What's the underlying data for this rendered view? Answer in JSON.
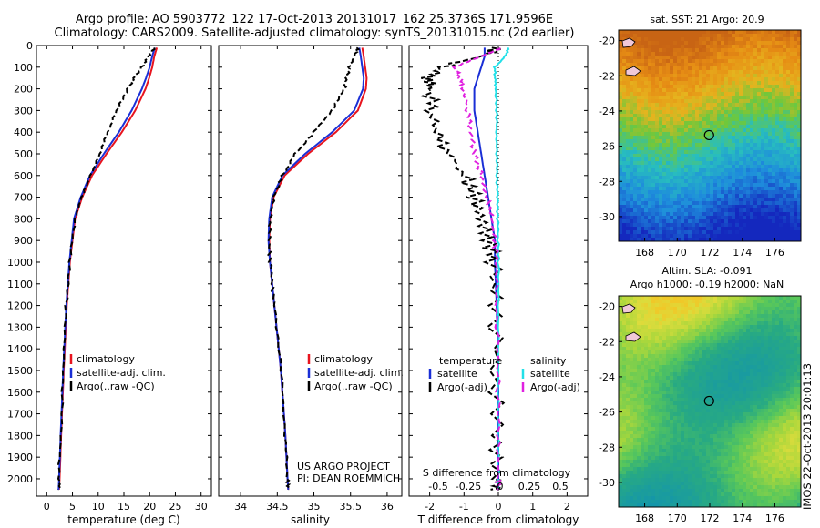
{
  "header": {
    "line1": "Argo profile: AO 5903772_122 17-Oct-2013 20131017_162 25.3736S 171.9596E",
    "line2": "Climatology: CARS2009. Satellite-adjusted climatology: synTS_20131015.nc (2d earlier)"
  },
  "colors": {
    "climatology": "#e8141e",
    "satellite": "#1a2fd6",
    "argo": "#000000",
    "sat_salinity": "#22e0e8",
    "argo_salinity": "#e020e0"
  },
  "chart_data": [
    {
      "type": "line",
      "xlabel": "temperature (deg C)",
      "xlim": [
        -2,
        32
      ],
      "ylim": [
        0,
        2080
      ],
      "xticks": [
        "0",
        "5",
        "10",
        "15",
        "20",
        "25",
        "30"
      ],
      "yticks": [
        "0",
        "100",
        "200",
        "300",
        "400",
        "500",
        "600",
        "700",
        "800",
        "900",
        "1000",
        "1100",
        "1200",
        "1300",
        "1400",
        "1500",
        "1600",
        "1700",
        "1800",
        "1900",
        "2000"
      ],
      "legend": [
        "climatology",
        "satellite-adj. clim.",
        "Argo(..raw -QC)"
      ],
      "depth": [
        10,
        50,
        100,
        150,
        200,
        300,
        400,
        500,
        600,
        700,
        800,
        1000,
        1200,
        1500,
        1800,
        2000,
        2050
      ],
      "series": [
        {
          "name": "climatology",
          "values": [
            21.4,
            20.9,
            20.5,
            19.9,
            19.2,
            17.2,
            14.6,
            11.6,
            8.8,
            6.9,
            5.5,
            4.5,
            3.9,
            3.3,
            2.8,
            2.5,
            2.4
          ]
        },
        {
          "name": "satellite-adj. clim.",
          "values": [
            21.0,
            20.5,
            20.0,
            19.3,
            18.5,
            16.5,
            14.0,
            11.1,
            8.4,
            6.6,
            5.3,
            4.4,
            3.8,
            3.2,
            2.7,
            2.4,
            2.3
          ]
        },
        {
          "name": "Argo(..raw -QC)",
          "values": [
            20.9,
            19.8,
            18.5,
            17.0,
            15.8,
            13.6,
            11.9,
            10.3,
            8.6,
            6.8,
            5.5,
            4.5,
            3.8,
            3.2,
            2.7,
            2.4,
            2.4
          ]
        }
      ]
    },
    {
      "type": "line",
      "xlabel": "salinity",
      "xlim": [
        33.7,
        36.2
      ],
      "ylim": [
        0,
        2080
      ],
      "xticks": [
        "34",
        "34.5",
        "35",
        "35.5",
        "36"
      ],
      "legend": [
        "climatology",
        "satellite-adj. clim.",
        "Argo(..raw -QC)"
      ],
      "annotation": [
        "US ARGO PROJECT",
        "PI: DEAN ROEMMICH"
      ],
      "depth": [
        10,
        50,
        100,
        150,
        200,
        300,
        400,
        500,
        600,
        700,
        800,
        900,
        1000,
        1100,
        1200,
        1500,
        1800,
        2000,
        2050
      ],
      "series": [
        {
          "name": "climatology",
          "values": [
            35.66,
            35.68,
            35.7,
            35.72,
            35.71,
            35.6,
            35.3,
            34.92,
            34.6,
            34.45,
            34.4,
            34.39,
            34.4,
            34.43,
            34.46,
            34.55,
            34.61,
            34.64,
            34.65
          ]
        },
        {
          "name": "satellite-adj. clim.",
          "values": [
            35.62,
            35.64,
            35.66,
            35.68,
            35.67,
            35.55,
            35.25,
            34.88,
            34.57,
            34.43,
            34.39,
            34.38,
            34.4,
            34.43,
            34.46,
            34.55,
            34.61,
            34.64,
            34.65
          ]
        },
        {
          "name": "Argo(..raw -QC)",
          "values": [
            35.6,
            35.55,
            35.48,
            35.45,
            35.42,
            35.25,
            35.0,
            34.75,
            34.57,
            34.45,
            34.4,
            34.39,
            34.4,
            34.43,
            34.46,
            34.55,
            34.61,
            34.64,
            34.65
          ]
        }
      ]
    },
    {
      "type": "line",
      "xlabel": "T difference from climatology",
      "xlabel_top": "S difference from climatology",
      "xlim": [
        -2.6,
        2.6
      ],
      "ylim": [
        0,
        2080
      ],
      "xticks": [
        "-2",
        "-1",
        "0",
        "1",
        "2"
      ],
      "xticks_top": [
        "-0.5",
        "-0.25",
        "0",
        "0.25",
        "0.5"
      ],
      "legend_groups": [
        "temperature",
        "salinity"
      ],
      "legend": [
        "satellite",
        "Argo(-adj)",
        "satellite",
        "Argo(-adj)"
      ],
      "depth": [
        10,
        50,
        100,
        150,
        200,
        300,
        400,
        500,
        600,
        700,
        800,
        900,
        1000,
        1200,
        1500,
        1800,
        2000,
        2050
      ],
      "series": [
        {
          "name": "T satellite",
          "values": [
            -0.4,
            -0.4,
            -0.5,
            -0.6,
            -0.7,
            -0.7,
            -0.6,
            -0.5,
            -0.4,
            -0.3,
            -0.2,
            -0.1,
            -0.1,
            -0.05,
            0,
            0,
            0,
            0
          ]
        },
        {
          "name": "T Argo(-adj)",
          "values": [
            0,
            -0.5,
            -1.7,
            -2.0,
            -2.0,
            -2.0,
            -1.8,
            -1.4,
            -1.0,
            -0.7,
            -0.5,
            -0.3,
            -0.15,
            -0.1,
            -0.05,
            -0.05,
            0,
            0
          ]
        },
        {
          "name": "S satellite",
          "values": [
            0.3,
            0.2,
            -0.1,
            -0.1,
            -0.08,
            -0.05,
            -0.05,
            -0.05,
            -0.05,
            -0.03,
            -0.02,
            -0.01,
            0,
            0,
            0,
            0,
            0,
            0
          ]
        },
        {
          "name": "S Argo(-adj)",
          "values": [
            0.1,
            -0.5,
            -1.3,
            -1.1,
            -1.0,
            -0.9,
            -0.8,
            -0.7,
            -0.5,
            -0.3,
            -0.2,
            -0.1,
            -0.05,
            -0.05,
            0,
            0,
            0,
            0
          ]
        }
      ]
    },
    {
      "type": "heatmap",
      "title": "sat. SST: 21 Argo: 20.9",
      "xticks": [
        "168",
        "170",
        "172",
        "174",
        "176"
      ],
      "yticks": [
        "-20",
        "-22",
        "-24",
        "-26",
        "-28",
        "-30"
      ],
      "xlim": [
        166.4,
        177.6
      ],
      "ylim": [
        -31.4,
        -19.4
      ],
      "float_position": [
        171.96,
        -25.37
      ]
    },
    {
      "type": "heatmap",
      "title": [
        "Altim. SLA: -0.091",
        "Argo h1000: -0.19 h2000: NaN"
      ],
      "xticks": [
        "168",
        "170",
        "172",
        "174",
        "176"
      ],
      "yticks": [
        "-20",
        "-22",
        "-24",
        "-26",
        "-28",
        "-30"
      ],
      "xlim": [
        166.4,
        177.6
      ],
      "ylim": [
        -31.4,
        -19.4
      ],
      "float_position": [
        171.96,
        -25.37
      ]
    }
  ],
  "footer": {
    "stamp": "IMOS 22-Oct-2013 20:01:13"
  }
}
